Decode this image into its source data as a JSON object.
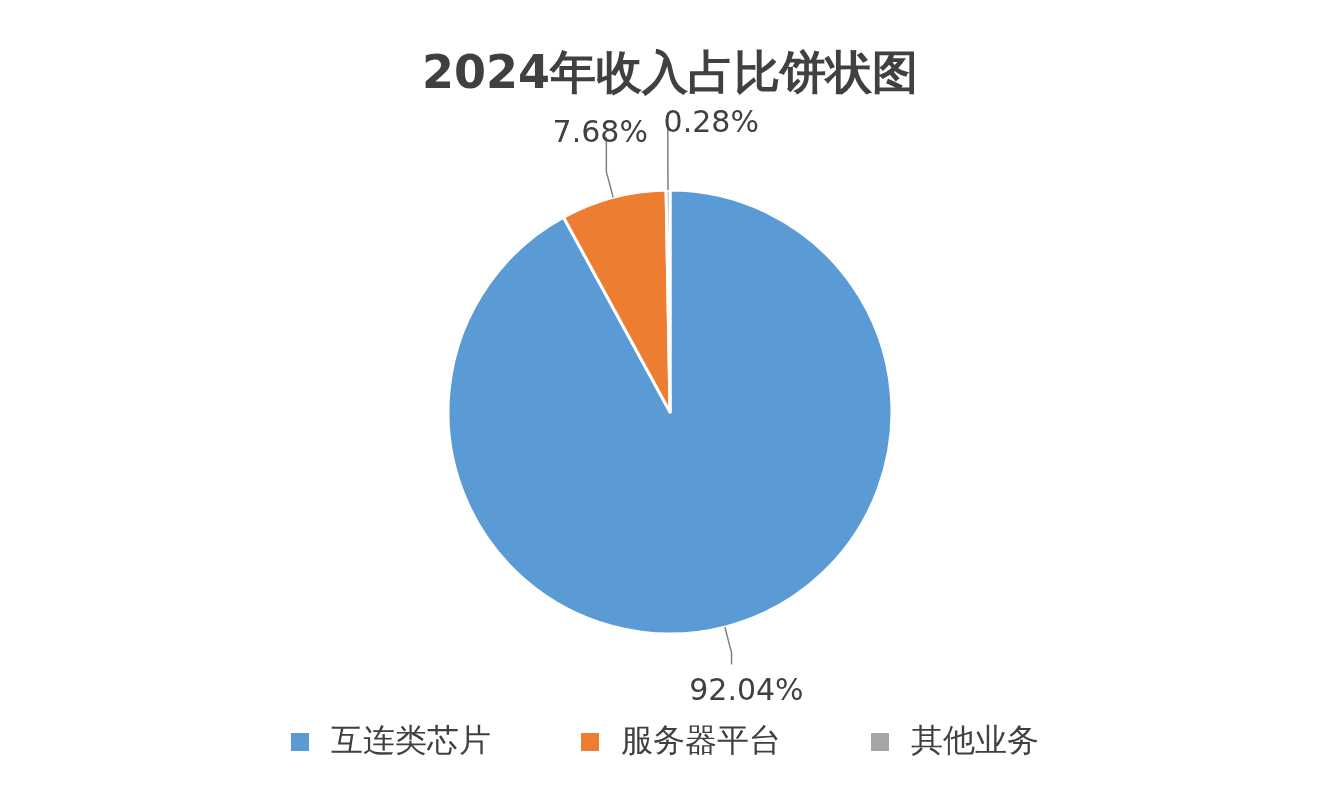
{
  "chart_data": {
    "type": "pie",
    "title": "2024年收入占比饼状图",
    "categories": [
      "互连类芯片",
      "服务器平台",
      "其他业务"
    ],
    "values": [
      92.04,
      7.68,
      0.28
    ],
    "colors": [
      "#5b9bd5",
      "#ed7d31",
      "#a5a5a5"
    ],
    "value_labels": [
      "92.04%",
      "7.68%",
      "0.28%"
    ],
    "legend": "bottom"
  }
}
